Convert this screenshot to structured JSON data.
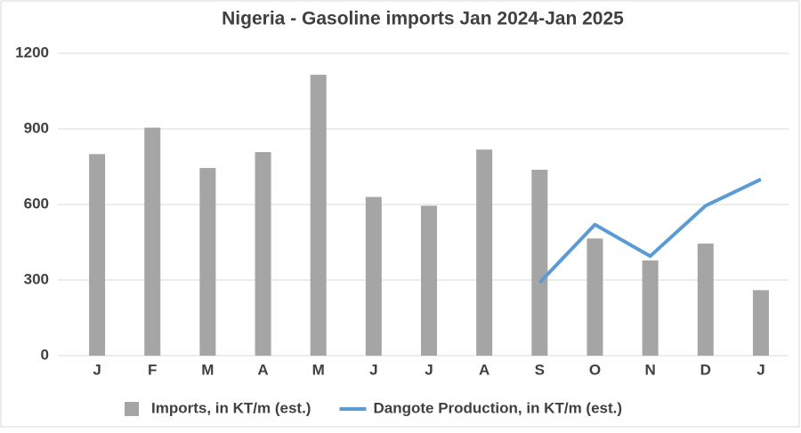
{
  "chart_data": {
    "type": "combo",
    "title": "Nigeria - Gasoline imports Jan 2024-Jan 2025",
    "categories": [
      "J",
      "F",
      "M",
      "A",
      "M",
      "J",
      "J",
      "A",
      "S",
      "O",
      "N",
      "D",
      "J"
    ],
    "series": [
      {
        "name": "Imports, in KT/m (est.)",
        "type": "bar",
        "color": "#a5a5a5",
        "values": [
          800,
          905,
          745,
          808,
          1115,
          630,
          595,
          818,
          738,
          465,
          378,
          445,
          260
        ]
      },
      {
        "name": "Dangote Production, in KT/m (est.)",
        "type": "line",
        "color": "#5b9bd5",
        "values": [
          null,
          null,
          null,
          null,
          null,
          null,
          null,
          null,
          290,
          520,
          395,
          595,
          700
        ]
      }
    ],
    "ylim": [
      0,
      1200
    ],
    "yticks": [
      0,
      300,
      600,
      900,
      1200
    ],
    "grid": true,
    "legend": "bottom"
  }
}
